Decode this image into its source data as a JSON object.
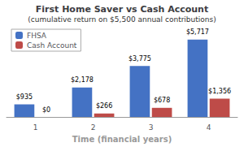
{
  "chart_data": {
    "type": "bar",
    "title": "First Home Saver vs Cash Account",
    "subtitle": "(cumulative return on $5,500 annual contributions)",
    "xlabel": "Time (financial years)",
    "categories": [
      "1",
      "2",
      "3",
      "4"
    ],
    "series": [
      {
        "name": "FHSA",
        "color": "#4472C4",
        "values": [
          935,
          2178,
          3775,
          5717
        ],
        "value_labels": [
          "$935",
          "$2,178",
          "$3,775",
          "$5,717"
        ]
      },
      {
        "name": "Cash Account",
        "color": "#BE4B48",
        "values": [
          0,
          266,
          678,
          1356
        ],
        "value_labels": [
          "$0",
          "$266",
          "$678",
          "$1,356"
        ]
      }
    ],
    "ylim": [
      0,
      6600
    ],
    "legend": "upper left",
    "grid": false,
    "data_labels": true,
    "tick_labels": "x"
  }
}
